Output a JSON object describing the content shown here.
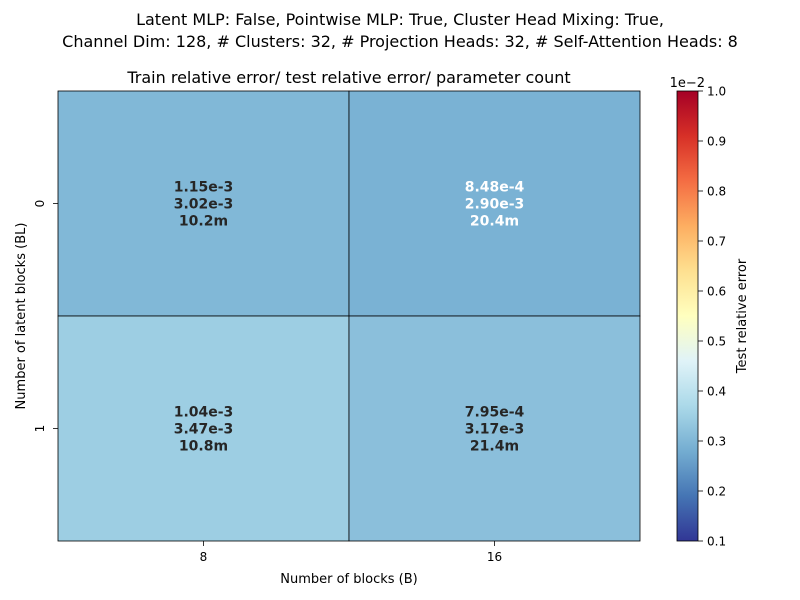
{
  "figure": {
    "suptitle_line1": "Latent MLP: False, Pointwise MLP: True, Cluster Head Mixing: True,",
    "suptitle_line2": "Channel Dim: 128, # Clusters: 32, # Projection Heads: 32, # Self-Attention Heads: 8"
  },
  "chart_data": {
    "type": "heatmap",
    "title": "Train relative error/ test relative error/ parameter count",
    "xlabel": "Number of blocks (B)",
    "ylabel": "Number of latent blocks (BL)",
    "x_categories": [
      "8",
      "16"
    ],
    "y_categories": [
      "0",
      "1"
    ],
    "cells": [
      [
        {
          "train_error": "1.15e-3",
          "test_error": "3.02e-3",
          "params": "10.2m",
          "color_value": 0.00302,
          "text_color": "#262626"
        },
        {
          "train_error": "8.48e-4",
          "test_error": "2.90e-3",
          "params": "20.4m",
          "color_value": 0.0029,
          "text_color": "#ffffff"
        }
      ],
      [
        {
          "train_error": "1.04e-3",
          "test_error": "3.47e-3",
          "params": "10.8m",
          "color_value": 0.00347,
          "text_color": "#262626"
        },
        {
          "train_error": "7.95e-4",
          "test_error": "3.17e-3",
          "params": "21.4m",
          "color_value": 0.00317,
          "text_color": "#262626"
        }
      ]
    ],
    "colorbar": {
      "label": "Test relative error",
      "multiplier": "1e−2",
      "colormap": "RdYlBu_r",
      "vmin": 0.1,
      "vmax": 1.0,
      "ticks": [
        "0.1",
        "0.2",
        "0.3",
        "0.4",
        "0.5",
        "0.6",
        "0.7",
        "0.8",
        "0.9",
        "1.0"
      ],
      "colors": [
        "#313695",
        "#4575b4",
        "#74add1",
        "#abd9e9",
        "#e0f3f8",
        "#ffffbf",
        "#fee090",
        "#fdae61",
        "#f46d43",
        "#d73027",
        "#a50026"
      ]
    }
  }
}
